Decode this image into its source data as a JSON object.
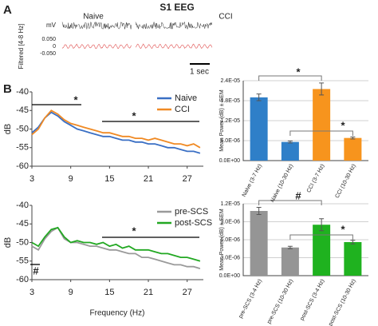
{
  "panel_a": {
    "label": "A",
    "title": "S1 EEG",
    "conditions": [
      "Naive",
      "CCI"
    ],
    "raw_unit": "mV",
    "filtered_label": "Filtered [4-8 Hz]",
    "filtered_ticks": [
      "0.050",
      "0",
      "-0.050"
    ],
    "scale_bar": "1 sec"
  },
  "panel_b": {
    "label": "B",
    "x_label": "Frequency (Hz)"
  },
  "chart_data": [
    {
      "type": "line",
      "y_label": "dB",
      "x": [
        3,
        4,
        5,
        6,
        7,
        8,
        9,
        10,
        11,
        12,
        13,
        14,
        15,
        16,
        17,
        18,
        19,
        20,
        21,
        22,
        23,
        24,
        25,
        26,
        27,
        28,
        29
      ],
      "xlim": [
        3,
        29.5
      ],
      "xticks": [
        3,
        9,
        15,
        21,
        27
      ],
      "ylim": [
        -60,
        -40
      ],
      "yticks": [
        -60,
        -55,
        -50,
        -45,
        -40
      ],
      "grid": false,
      "legend": "top-right",
      "series": [
        {
          "name": "Naive",
          "color": "#3a6fc4",
          "values": [
            -51,
            -49.5,
            -47,
            -45.5,
            -46.5,
            -48,
            -49,
            -50,
            -50.5,
            -51,
            -51.5,
            -52,
            -52,
            -52.5,
            -53,
            -53,
            -53.5,
            -53.5,
            -54,
            -54,
            -54.5,
            -55,
            -55,
            -55.5,
            -56,
            -56,
            -56.5
          ]
        },
        {
          "name": "CCI",
          "color": "#f08a24",
          "values": [
            -51.5,
            -50,
            -47,
            -45,
            -46,
            -47.5,
            -48.5,
            -49,
            -49.5,
            -50,
            -50.5,
            -51,
            -51,
            -51.5,
            -52,
            -52,
            -52.5,
            -52.5,
            -53,
            -52.5,
            -53,
            -53.5,
            -54,
            -54,
            -54.5,
            -54,
            -55
          ]
        }
      ],
      "annotations": [
        "*",
        "*"
      ]
    },
    {
      "type": "line",
      "y_label": "dB",
      "x": [
        3,
        4,
        5,
        6,
        7,
        8,
        9,
        10,
        11,
        12,
        13,
        14,
        15,
        16,
        17,
        18,
        19,
        20,
        21,
        22,
        23,
        24,
        25,
        26,
        27,
        28,
        29
      ],
      "xlim": [
        3,
        29.5
      ],
      "xticks": [
        3,
        9,
        15,
        21,
        27
      ],
      "ylim": [
        -60,
        -40
      ],
      "yticks": [
        -60,
        -55,
        -50,
        -45,
        -40
      ],
      "grid": false,
      "legend": "top-right",
      "series": [
        {
          "name": "pre-SCS",
          "color": "#9a9a9a",
          "values": [
            -51,
            -52,
            -49,
            -47,
            -46,
            -49,
            -50,
            -50,
            -50.5,
            -51,
            -51,
            -51.5,
            -52,
            -52,
            -52.5,
            -53,
            -53,
            -54,
            -54,
            -54.5,
            -55,
            -55.5,
            -56,
            -56,
            -56.5,
            -56.5,
            -57
          ]
        },
        {
          "name": "post-SCS",
          "color": "#22a822",
          "values": [
            -50,
            -51,
            -48.5,
            -46.5,
            -46,
            -48.5,
            -50,
            -49.5,
            -50,
            -50,
            -50.5,
            -50,
            -51,
            -50.5,
            -51.5,
            -51,
            -52,
            -52,
            -52,
            -52.5,
            -53,
            -53,
            -53.5,
            -54,
            -54,
            -54.5,
            -55
          ]
        }
      ],
      "annotations": [
        "*",
        "#"
      ]
    },
    {
      "type": "bar",
      "y_label": "Mean Power (dB) ± SEM",
      "categories": [
        "Naive (3-7 Hz)",
        "Naive (10-30 Hz)",
        "CCI (3-7 Hz)",
        "CCI (10-30 Hz)"
      ],
      "values": [
        1.9e-05,
        5.6e-06,
        2.15e-05,
        6.8e-06
      ],
      "errors": [
        1e-06,
        3e-07,
        1.8e-06,
        3e-07
      ],
      "colors": [
        "#2f7fc8",
        "#2f7fc8",
        "#f7941d",
        "#f7941d"
      ],
      "ylim": [
        0,
        2.4e-05
      ],
      "yticks": [
        {
          "value": 0,
          "label": "0.0E+00"
        },
        {
          "value": 6e-06,
          "label": "6.0E-06"
        },
        {
          "value": 1.2e-05,
          "label": "1.2E-05"
        },
        {
          "value": 1.8e-05,
          "label": "1.8E-05"
        },
        {
          "value": 2.4e-05,
          "label": "2.4E-05"
        }
      ],
      "grid": true,
      "annotations": [
        "*",
        "*"
      ]
    },
    {
      "type": "bar",
      "y_label": "Mean Power (dB) ± SEM",
      "categories": [
        "pre-SCS (3-4 Hz)",
        "pre-SCS (10-30 Hz)",
        "post-SCS (3-4 Hz)",
        "post-SCS (10-30 Hz)"
      ],
      "values": [
        1.08e-05,
        4.7e-06,
        8.5e-06,
        5.6e-06
      ],
      "errors": [
        6e-07,
        2e-07,
        1e-06,
        3e-07
      ],
      "colors": [
        "#959595",
        "#959595",
        "#1fb21f",
        "#1fb21f"
      ],
      "ylim": [
        0,
        1.2e-05
      ],
      "yticks": [
        {
          "value": 0,
          "label": "0.0E+00"
        },
        {
          "value": 3e-06,
          "label": "3.0E-06"
        },
        {
          "value": 6e-06,
          "label": "6.0E-06"
        },
        {
          "value": 9e-06,
          "label": "9.0E-06"
        },
        {
          "value": 1.2e-05,
          "label": "1.2E-05"
        }
      ],
      "grid": true,
      "annotations": [
        "#",
        "*"
      ]
    }
  ]
}
